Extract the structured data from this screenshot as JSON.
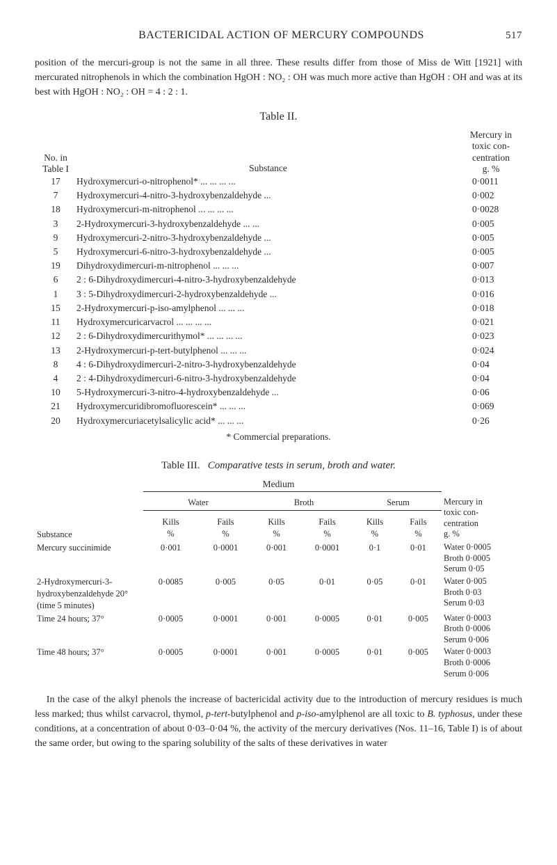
{
  "header": {
    "running_title": "BACTERICIDAL ACTION OF MERCURY COMPOUNDS",
    "page_number": "517"
  },
  "intro_para": "position of the mercuri-group is not the same in all three. These results differ from those of Miss de Witt [1921] with mercurated nitrophenols in which the combination HgOH : NO₂ : OH was much more active than HgOH : OH and was at its best with HgOH : NO₂ : OH = 4 : 2 : 1.",
  "table2": {
    "title": "Table II.",
    "col_headers": {
      "no": "No. in Table I",
      "substance": "Substance",
      "mercury": "Mercury in toxic con- centration g. %"
    },
    "rows": [
      {
        "no": "17",
        "sub": "Hydroxymercuri-o-nitrophenol*   ...   ...   ...   ...",
        "merc": "0·0011"
      },
      {
        "no": "7",
        "sub": "Hydroxymercuri-4-nitro-3-hydroxybenzaldehyde   ...",
        "merc": "0·002"
      },
      {
        "no": "18",
        "sub": "Hydroxymercuri-m-nitrophenol   ...   ...   ...   ...",
        "merc": "0·0028"
      },
      {
        "no": "3",
        "sub": "2-Hydroxymercuri-3-hydroxybenzaldehyde   ...   ...",
        "merc": "0·005"
      },
      {
        "no": "9",
        "sub": "Hydroxymercuri-2-nitro-3-hydroxybenzaldehyde   ...",
        "merc": "0·005"
      },
      {
        "no": "5",
        "sub": "Hydroxymercuri-6-nitro-3-hydroxybenzaldehyde   ...",
        "merc": "0·005"
      },
      {
        "no": "19",
        "sub": "Dihydroxydimercuri-m-nitrophenol   ...   ...   ...",
        "merc": "0·007"
      },
      {
        "no": "6",
        "sub": "2 : 6-Dihydroxydimercuri-4-nitro-3-hydroxybenzaldehyde",
        "merc": "0·013"
      },
      {
        "no": "1",
        "sub": "3 : 5-Dihydroxydimercuri-2-hydroxybenzaldehyde   ...",
        "merc": "0·016"
      },
      {
        "no": "15",
        "sub": "2-Hydroxymercuri-p-iso-amylphenol   ...   ...   ...",
        "merc": "0·018"
      },
      {
        "no": "11",
        "sub": "Hydroxymercuricarvacrol   ...   ...   ...   ...",
        "merc": "0·021"
      },
      {
        "no": "12",
        "sub": "2 : 6-Dihydroxydimercurithymol* ...   ...   ...   ...",
        "merc": "0·023"
      },
      {
        "no": "13",
        "sub": "2-Hydroxymercuri-p-tert-butylphenol   ...   ...   ...",
        "merc": "0·024"
      },
      {
        "no": "8",
        "sub": "4 : 6-Dihydroxydimercuri-2-nitro-3-hydroxybenzaldehyde",
        "merc": "0·04"
      },
      {
        "no": "4",
        "sub": "2 : 4-Dihydroxydimercuri-6-nitro-3-hydroxybenzaldehyde",
        "merc": "0·04"
      },
      {
        "no": "10",
        "sub": "5-Hydroxymercuri-3-nitro-4-hydroxybenzaldehyde   ...",
        "merc": "0·06"
      },
      {
        "no": "21",
        "sub": "Hydroxymercuridibromofluorescein*   ...   ...   ...",
        "merc": "0·069"
      },
      {
        "no": "20",
        "sub": "Hydroxymercuriacetylsalicylic acid*   ...   ...   ...",
        "merc": "0·26"
      }
    ],
    "footnote": "* Commercial preparations."
  },
  "table3": {
    "label": "Table III.",
    "caption": "Comparative tests in serum, broth and water.",
    "medium_label": "Medium",
    "group_headers": [
      "Water",
      "Broth",
      "Serum"
    ],
    "sub_headers": {
      "substance": "Substance",
      "kills": "Kills %",
      "fails": "Fails %",
      "result": "Mercury in toxic con- centration g. %"
    },
    "rows": [
      {
        "sub": "Mercury succinimide",
        "w_k": "0·001",
        "w_f": "0·0001",
        "b_k": "0·001",
        "b_f": "0·0001",
        "s_k": "0·1",
        "s_f": "0·01",
        "res": [
          "Water 0·0005",
          "Broth 0·0005",
          "Serum 0·05"
        ]
      },
      {
        "sub": "2-Hydroxymercuri-3-hydroxybenzaldehyde 20° (time 5 minutes)",
        "w_k": "0·0085",
        "w_f": "0·005",
        "b_k": "0·05",
        "b_f": "0·01",
        "s_k": "0·05",
        "s_f": "0·01",
        "res": [
          "Water 0·005",
          "Broth 0·03",
          "Serum 0·03"
        ]
      },
      {
        "sub": "Time 24 hours; 37°",
        "w_k": "0·0005",
        "w_f": "0·0001",
        "b_k": "0·001",
        "b_f": "0·0005",
        "s_k": "0·01",
        "s_f": "0·005",
        "res": [
          "Water 0·0003",
          "Broth 0·0006",
          "Serum 0·006"
        ]
      },
      {
        "sub": "Time 48 hours; 37°",
        "w_k": "0·0005",
        "w_f": "0·0001",
        "b_k": "0·001",
        "b_f": "0·0005",
        "s_k": "0·01",
        "s_f": "0·005",
        "res": [
          "Water 0·0003",
          "Broth 0·0006",
          "Serum 0·006"
        ]
      }
    ]
  },
  "closing_para_parts": {
    "p1": "In the case of the alkyl phenols the increase of bactericidal activity due to the introduction of mercury residues is much less marked; thus whilst carvacrol, thymol, ",
    "p2": "p-tert",
    "p3": "-butylphenol and ",
    "p4": "p-iso",
    "p5": "-amylphenol are all toxic to ",
    "p6": "B. typhosus",
    "p7": ", under these conditions, at a concentration of about 0·03–0·04 %, the activity of the mercury derivatives (Nos. 11–16, Table I) is of about the same order, but owing to the sparing solubility of the salts of these derivatives in water"
  }
}
